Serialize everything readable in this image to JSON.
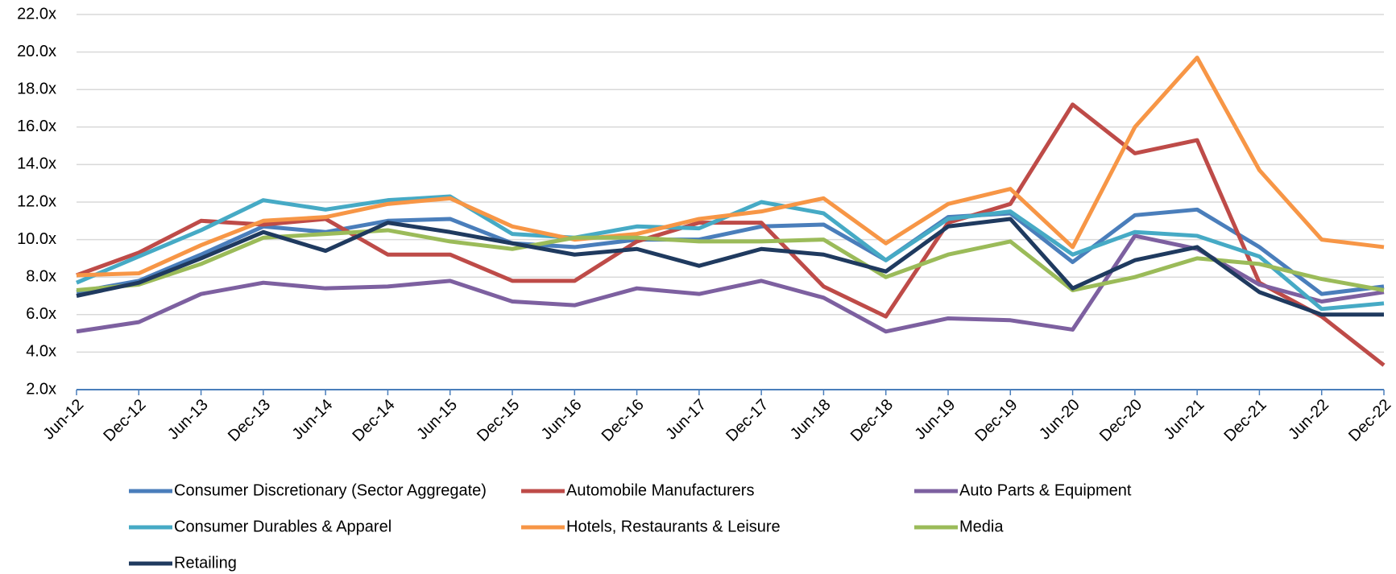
{
  "chart_data": {
    "type": "line",
    "categories": [
      "Jun-12",
      "Dec-12",
      "Jun-13",
      "Dec-13",
      "Jun-14",
      "Dec-14",
      "Jun-15",
      "Dec-15",
      "Jun-16",
      "Dec-16",
      "Jun-17",
      "Dec-17",
      "Jun-18",
      "Dec-18",
      "Jun-19",
      "Dec-19",
      "Jun-20",
      "Dec-20",
      "Jun-21",
      "Dec-21",
      "Jun-22",
      "Dec-22"
    ],
    "ylim": [
      2,
      22
    ],
    "yticks": [
      {
        "value": 2,
        "label": "2.0x"
      },
      {
        "value": 4,
        "label": "4.0x"
      },
      {
        "value": 6,
        "label": "6.0x"
      },
      {
        "value": 8,
        "label": "8.0x"
      },
      {
        "value": 10,
        "label": "10.0x"
      },
      {
        "value": 12,
        "label": "12.0x"
      },
      {
        "value": 14,
        "label": "14.0x"
      },
      {
        "value": 16,
        "label": "16.0x"
      },
      {
        "value": 18,
        "label": "18.0x"
      },
      {
        "value": 20,
        "label": "20.0x"
      },
      {
        "value": 22,
        "label": "22.0x"
      }
    ],
    "grid": true,
    "series": [
      {
        "name": "Consumer Discretionary (Sector Aggregate)",
        "color": "#4a7ebb",
        "values": [
          7.2,
          7.8,
          9.2,
          10.7,
          10.4,
          11.0,
          11.1,
          9.8,
          9.6,
          10.0,
          10.0,
          10.7,
          10.8,
          8.9,
          11.2,
          11.4,
          8.8,
          11.3,
          11.6,
          9.6,
          7.1,
          7.5
        ]
      },
      {
        "name": "Automobile Manufacturers",
        "color": "#be4b48",
        "values": [
          8.1,
          9.3,
          11.0,
          10.8,
          11.1,
          9.2,
          9.2,
          7.8,
          7.8,
          9.9,
          10.9,
          10.9,
          7.5,
          5.9,
          10.9,
          11.9,
          17.2,
          14.6,
          15.3,
          7.7,
          5.9,
          3.3
        ]
      },
      {
        "name": "Auto Parts & Equipment",
        "color": "#7d60a0",
        "values": [
          5.1,
          5.6,
          7.1,
          7.7,
          7.4,
          7.5,
          7.8,
          6.7,
          6.5,
          7.4,
          7.1,
          7.8,
          6.9,
          5.1,
          5.8,
          5.7,
          5.2,
          10.2,
          9.5,
          7.6,
          6.7,
          7.2
        ]
      },
      {
        "name": "Consumer Durables & Apparel",
        "color": "#46aac5",
        "values": [
          7.7,
          9.1,
          10.5,
          12.1,
          11.6,
          12.1,
          12.3,
          10.3,
          10.1,
          10.7,
          10.6,
          12.0,
          11.4,
          8.9,
          11.1,
          11.5,
          9.2,
          10.4,
          10.2,
          9.1,
          6.3,
          6.6
        ]
      },
      {
        "name": "Hotels, Restaurants & Leisure",
        "color": "#f79646",
        "values": [
          8.1,
          8.2,
          9.7,
          11.0,
          11.2,
          11.9,
          12.2,
          10.7,
          10.0,
          10.3,
          11.1,
          11.5,
          12.2,
          9.8,
          11.9,
          12.7,
          9.6,
          16.0,
          19.7,
          13.7,
          10.0,
          9.6
        ]
      },
      {
        "name": "Media",
        "color": "#9bbb59",
        "values": [
          7.3,
          7.6,
          8.7,
          10.1,
          10.3,
          10.5,
          9.9,
          9.5,
          10.1,
          10.1,
          9.9,
          9.9,
          10.0,
          8.0,
          9.2,
          9.9,
          7.3,
          8.0,
          9.0,
          8.7,
          7.9,
          7.3
        ]
      },
      {
        "name": "Retailing",
        "color": "#1f3a5f",
        "values": [
          7.0,
          7.7,
          9.0,
          10.4,
          9.4,
          10.9,
          10.4,
          9.8,
          9.2,
          9.5,
          8.6,
          9.5,
          9.2,
          8.3,
          10.7,
          11.1,
          7.4,
          8.9,
          9.6,
          7.2,
          6.0,
          6.0
        ]
      }
    ]
  }
}
